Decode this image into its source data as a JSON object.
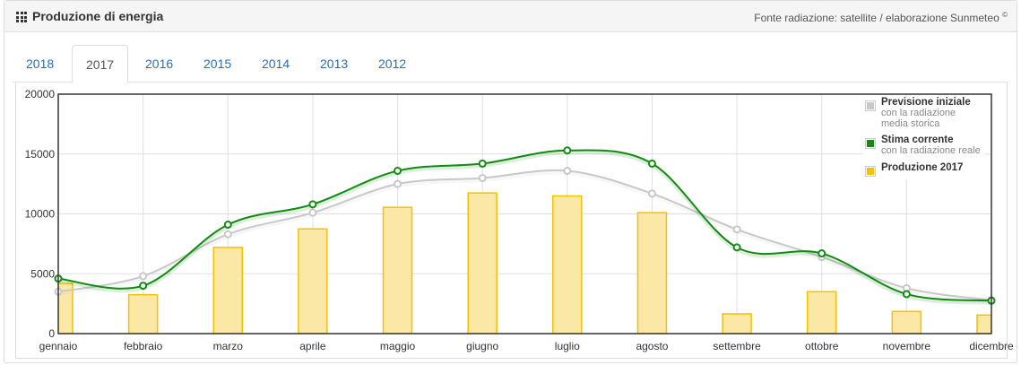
{
  "header": {
    "title": "Produzione di energia",
    "source": "Fonte radiazione: satellite / elaborazione Sunmeteo",
    "source_mark": "©"
  },
  "tabs": [
    {
      "label": "2018",
      "active": false
    },
    {
      "label": "2017",
      "active": true
    },
    {
      "label": "2016",
      "active": false
    },
    {
      "label": "2015",
      "active": false
    },
    {
      "label": "2014",
      "active": false
    },
    {
      "label": "2013",
      "active": false
    },
    {
      "label": "2012",
      "active": false
    }
  ],
  "legend": [
    {
      "name": "Previsione iniziale",
      "sub": "con la radiazione media storica",
      "color": "#c8c8c8"
    },
    {
      "name": "Stima corrente",
      "sub": "con la radiazione reale",
      "color": "#138a13"
    },
    {
      "name": "Produzione 2017",
      "sub": "",
      "color": "#f2c200"
    }
  ],
  "chart_data": {
    "type": "bar",
    "categories": [
      "gennaio",
      "febbraio",
      "marzo",
      "aprile",
      "maggio",
      "giugno",
      "luglio",
      "agosto",
      "settembre",
      "ottobre",
      "novembre",
      "dicembre"
    ],
    "ylim": [
      0,
      20000
    ],
    "yticks": [
      0,
      5000,
      10000,
      15000,
      20000
    ],
    "grid": true,
    "legend_position": "top-right",
    "series": [
      {
        "name": "Produzione 2017",
        "type": "bar",
        "color": "#f2c200",
        "fill": "#fbe8a6",
        "values": [
          4200,
          3250,
          7200,
          8750,
          10550,
          11750,
          11500,
          10100,
          1650,
          3500,
          1850,
          1550
        ]
      },
      {
        "name": "Previsione iniziale",
        "type": "line",
        "color": "#c8c8c8",
        "values": [
          3500,
          4800,
          8300,
          10100,
          12500,
          13000,
          13600,
          11700,
          8700,
          6400,
          3800,
          2800
        ]
      },
      {
        "name": "Stima corrente",
        "type": "line",
        "color": "#138a13",
        "values": [
          4600,
          4000,
          9100,
          10800,
          13600,
          14200,
          15300,
          14200,
          7200,
          6700,
          3300,
          2750
        ]
      }
    ]
  }
}
